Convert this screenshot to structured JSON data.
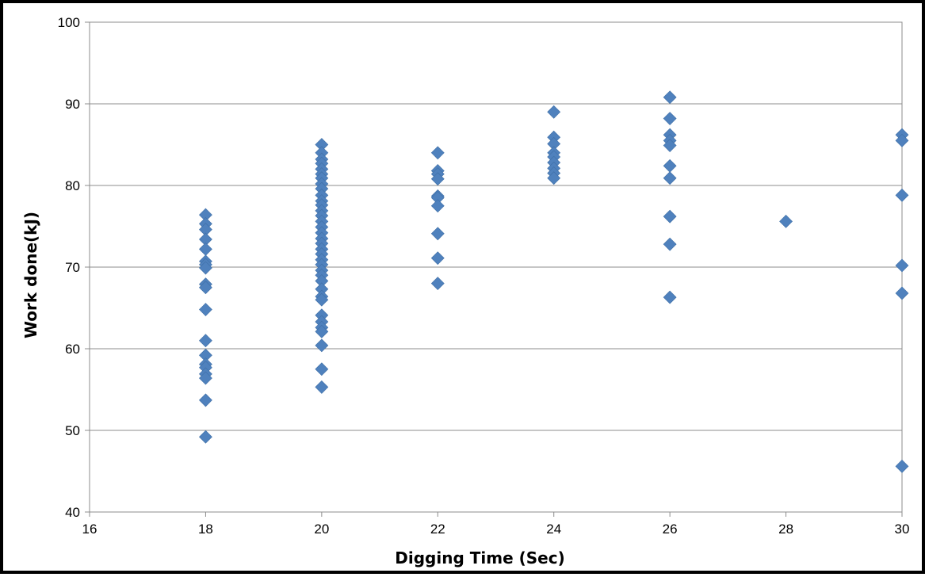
{
  "chart_data": {
    "type": "scatter",
    "title": "",
    "xlabel": "Digging Time (Sec)",
    "ylabel": "Work done(kJ)",
    "xlim": [
      16,
      30
    ],
    "ylim": [
      40,
      100
    ],
    "xticks": [
      16,
      18,
      20,
      22,
      24,
      26,
      28,
      30
    ],
    "yticks": [
      40,
      50,
      60,
      70,
      80,
      90,
      100
    ],
    "grid": {
      "horizontal": true,
      "vertical": false
    },
    "legend": "none",
    "marker": "diamond",
    "color": "#4F81BD",
    "series": [
      {
        "points": [
          [
            18,
            76.4
          ],
          [
            18,
            75.3
          ],
          [
            18,
            74.6
          ],
          [
            18,
            73.4
          ],
          [
            18,
            72.2
          ],
          [
            18,
            70.7
          ],
          [
            18,
            70.3
          ],
          [
            18,
            69.9
          ],
          [
            18,
            67.9
          ],
          [
            18,
            67.5
          ],
          [
            18,
            64.8
          ],
          [
            18,
            61.0
          ],
          [
            18,
            59.2
          ],
          [
            18,
            58.1
          ],
          [
            18,
            57.7
          ],
          [
            18,
            56.9
          ],
          [
            18,
            56.4
          ],
          [
            18,
            53.7
          ],
          [
            18,
            49.2
          ],
          [
            20,
            85.0
          ],
          [
            20,
            84.0
          ],
          [
            20,
            83.2
          ],
          [
            20,
            82.7
          ],
          [
            20,
            82.0
          ],
          [
            20,
            81.4
          ],
          [
            20,
            80.9
          ],
          [
            20,
            80.2
          ],
          [
            20,
            79.6
          ],
          [
            20,
            78.8
          ],
          [
            20,
            78.1
          ],
          [
            20,
            77.6
          ],
          [
            20,
            76.9
          ],
          [
            20,
            76.3
          ],
          [
            20,
            75.6
          ],
          [
            20,
            74.9
          ],
          [
            20,
            74.2
          ],
          [
            20,
            73.5
          ],
          [
            20,
            72.9
          ],
          [
            20,
            72.2
          ],
          [
            20,
            71.6
          ],
          [
            20,
            70.9
          ],
          [
            20,
            70.3
          ],
          [
            20,
            69.6
          ],
          [
            20,
            69.0
          ],
          [
            20,
            68.3
          ],
          [
            20,
            67.3
          ],
          [
            20,
            66.4
          ],
          [
            20,
            66.0
          ],
          [
            20,
            64.1
          ],
          [
            20,
            63.3
          ],
          [
            20,
            62.6
          ],
          [
            20,
            62.1
          ],
          [
            20,
            60.4
          ],
          [
            20,
            57.5
          ],
          [
            20,
            55.3
          ],
          [
            22,
            84.0
          ],
          [
            22,
            81.8
          ],
          [
            22,
            81.4
          ],
          [
            22,
            80.8
          ],
          [
            22,
            78.7
          ],
          [
            22,
            78.5
          ],
          [
            22,
            77.5
          ],
          [
            22,
            74.1
          ],
          [
            22,
            71.1
          ],
          [
            22,
            68.0
          ],
          [
            24,
            89.0
          ],
          [
            24,
            85.9
          ],
          [
            24,
            85.1
          ],
          [
            24,
            84.0
          ],
          [
            24,
            83.5
          ],
          [
            24,
            82.8
          ],
          [
            24,
            82.1
          ],
          [
            24,
            81.5
          ],
          [
            24,
            80.9
          ],
          [
            26,
            90.8
          ],
          [
            26,
            88.2
          ],
          [
            26,
            86.2
          ],
          [
            26,
            85.5
          ],
          [
            26,
            84.9
          ],
          [
            26,
            82.4
          ],
          [
            26,
            80.9
          ],
          [
            26,
            76.2
          ],
          [
            26,
            72.8
          ],
          [
            26,
            66.3
          ],
          [
            28,
            75.6
          ],
          [
            30,
            86.2
          ],
          [
            30,
            85.5
          ],
          [
            30,
            78.8
          ],
          [
            30,
            70.2
          ],
          [
            30,
            66.8
          ],
          [
            30,
            45.6
          ]
        ]
      }
    ]
  }
}
